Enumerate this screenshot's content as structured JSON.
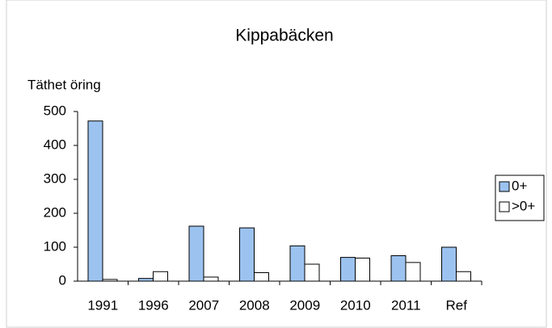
{
  "chart_data": {
    "type": "bar",
    "title": "Kippabäcken",
    "y_label": "Täthet öring",
    "categories": [
      "1991",
      "1996",
      "2007",
      "2008",
      "2009",
      "2010",
      "2011",
      "Ref"
    ],
    "series": [
      {
        "name": "0+",
        "color": "#9cc3f0",
        "values": [
          472,
          8,
          162,
          157,
          104,
          70,
          75,
          100
        ]
      },
      {
        "name": ">0+",
        "color": "#ffffff",
        "values": [
          5,
          28,
          12,
          25,
          50,
          68,
          55,
          28
        ]
      }
    ],
    "ylim": [
      0,
      500
    ],
    "yticks": [
      0,
      100,
      200,
      300,
      400,
      500
    ],
    "grid": false,
    "legend": "right"
  }
}
